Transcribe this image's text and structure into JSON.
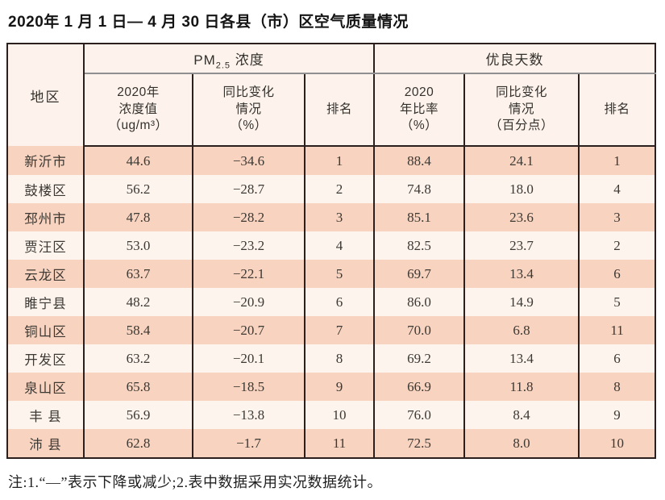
{
  "page": {
    "title": "2020年 1 月 1 日— 4 月 30 日各县（市）区空气质量情况"
  },
  "table": {
    "region_header": "地区",
    "pm_group": {
      "prefix": "PM",
      "sub": "2.5",
      "suffix": " 浓度"
    },
    "good_group_label": "优良天数",
    "subheaders": {
      "pm_value": "2020年\n浓度值\n（ug/m³）",
      "pm_change": "同比变化\n情况\n（%）",
      "pm_rank": "排名",
      "good_rate": "2020\n年比率\n（%）",
      "good_change": "同比变化\n情况\n（百分点）",
      "good_rank": "排名"
    }
  },
  "rows": [
    {
      "region": "新沂市",
      "pm_value": "44.6",
      "pm_change": "−34.6",
      "pm_rank": "1",
      "good_rate": "88.4",
      "good_change": "24.1",
      "good_rank": "1"
    },
    {
      "region": "鼓楼区",
      "pm_value": "56.2",
      "pm_change": "−28.7",
      "pm_rank": "2",
      "good_rate": "74.8",
      "good_change": "18.0",
      "good_rank": "4"
    },
    {
      "region": "邳州市",
      "pm_value": "47.8",
      "pm_change": "−28.2",
      "pm_rank": "3",
      "good_rate": "85.1",
      "good_change": "23.6",
      "good_rank": "3"
    },
    {
      "region": "贾汪区",
      "pm_value": "53.0",
      "pm_change": "−23.2",
      "pm_rank": "4",
      "good_rate": "82.5",
      "good_change": "23.7",
      "good_rank": "2"
    },
    {
      "region": "云龙区",
      "pm_value": "63.7",
      "pm_change": "−22.1",
      "pm_rank": "5",
      "good_rate": "69.7",
      "good_change": "13.4",
      "good_rank": "6"
    },
    {
      "region": "睢宁县",
      "pm_value": "48.2",
      "pm_change": "−20.9",
      "pm_rank": "6",
      "good_rate": "86.0",
      "good_change": "14.9",
      "good_rank": "5"
    },
    {
      "region": "铜山区",
      "pm_value": "58.4",
      "pm_change": "−20.7",
      "pm_rank": "7",
      "good_rate": "70.0",
      "good_change": "6.8",
      "good_rank": "11"
    },
    {
      "region": "开发区",
      "pm_value": "63.2",
      "pm_change": "−20.1",
      "pm_rank": "8",
      "good_rate": "69.2",
      "good_change": "13.4",
      "good_rank": "6"
    },
    {
      "region": "泉山区",
      "pm_value": "65.8",
      "pm_change": "−18.5",
      "pm_rank": "9",
      "good_rate": "66.9",
      "good_change": "11.8",
      "good_rank": "8"
    },
    {
      "region": "丰 县",
      "pm_value": "56.9",
      "pm_change": "−13.8",
      "pm_rank": "10",
      "good_rate": "76.0",
      "good_change": "8.4",
      "good_rank": "9"
    },
    {
      "region": "沛 县",
      "pm_value": "62.8",
      "pm_change": "−1.7",
      "pm_rank": "11",
      "good_rate": "72.5",
      "good_change": "8.0",
      "good_rank": "10"
    }
  ],
  "note": "注:1.“—”表示下降或减少;2.表中数据采用实况数据统计。",
  "colors": {
    "band_row": "#f8d3bf",
    "light_row": "#fdf4ee",
    "header_bg": "#fdf3ec",
    "table_border": "#2b201d",
    "group_underline": "#8f8f8f"
  }
}
